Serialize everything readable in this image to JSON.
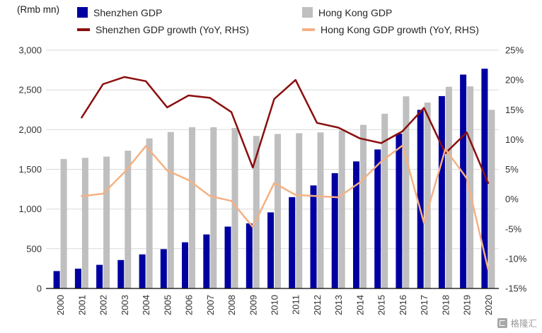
{
  "watermark": {
    "text": "格隆汇"
  },
  "legend": {
    "items": [
      {
        "label": "Shenzhen GDP",
        "type": "bar",
        "color": "#0000A0"
      },
      {
        "label": "Hong Kong GDP",
        "type": "bar",
        "color": "#BFBFBF"
      },
      {
        "label": "Shenzhen GDP growth (YoY, RHS)",
        "type": "line",
        "color": "#8B0E0E"
      },
      {
        "label": "Hong Kong GDP growth (YoY, RHS)",
        "type": "line",
        "color": "#F4B183"
      }
    ]
  },
  "chart_data": {
    "type": "bar+line combo",
    "title": "",
    "categories": [
      "2000",
      "2001",
      "2002",
      "2003",
      "2004",
      "2005",
      "2006",
      "2007",
      "2008",
      "2009",
      "2010",
      "2011",
      "2012",
      "2013",
      "2014",
      "2015",
      "2016",
      "2017",
      "2018",
      "2019",
      "2020"
    ],
    "bar_series": [
      {
        "name": "Shenzhen GDP",
        "axis": "left",
        "color": "#0000A0",
        "values": [
          219,
          249,
          297,
          358,
          429,
          495,
          581,
          680,
          779,
          820,
          958,
          1150,
          1297,
          1452,
          1600,
          1750,
          1950,
          2249,
          2422,
          2693,
          2767
        ]
      },
      {
        "name": "Hong Kong GDP",
        "axis": "left",
        "color": "#BFBFBF",
        "values": [
          1630,
          1645,
          1660,
          1735,
          1890,
          1970,
          2030,
          2030,
          2020,
          1920,
          1945,
          1955,
          1965,
          1990,
          2060,
          2200,
          2420,
          2340,
          2540,
          2545,
          2250
        ]
      }
    ],
    "line_series": [
      {
        "name": "Shenzhen GDP growth (YoY, RHS)",
        "axis": "right",
        "color": "#8B0E0E",
        "values": [
          null,
          13.7,
          19.3,
          20.5,
          19.8,
          15.4,
          17.4,
          17.0,
          14.6,
          5.3,
          16.8,
          20.0,
          12.8,
          12.0,
          10.2,
          9.4,
          11.4,
          15.3,
          7.7,
          11.2,
          2.7
        ]
      },
      {
        "name": "Hong Kong GDP growth (YoY, RHS)",
        "axis": "right",
        "color": "#F4B183",
        "values": [
          null,
          0.5,
          0.9,
          4.5,
          8.9,
          4.8,
          3.2,
          0.5,
          -0.3,
          -4.7,
          2.7,
          0.7,
          0.5,
          0.3,
          2.8,
          6.3,
          9.0,
          -4.0,
          8.4,
          3.5,
          -11.8
        ]
      }
    ],
    "left_axis": {
      "label": "(Rmb mn)",
      "min": 0,
      "max": 3000,
      "ticks": [
        0,
        500,
        1000,
        1500,
        2000,
        2500,
        3000
      ],
      "tick_labels": [
        "0",
        "500",
        "1,000",
        "1,500",
        "2,000",
        "2,500",
        "3,000"
      ]
    },
    "right_axis": {
      "min": -15,
      "max": 25,
      "ticks": [
        -15,
        -10,
        -5,
        0,
        5,
        10,
        15,
        20,
        25
      ],
      "tick_labels": [
        "-15%",
        "-10%",
        "-5%",
        "0%",
        "5%",
        "10%",
        "15%",
        "20%",
        "25%"
      ]
    },
    "grid": true,
    "legend_position": "top",
    "style": {
      "grid_color": "#D9D9D9",
      "axis_line_color": "#000000",
      "tick_color": "#333333"
    }
  }
}
